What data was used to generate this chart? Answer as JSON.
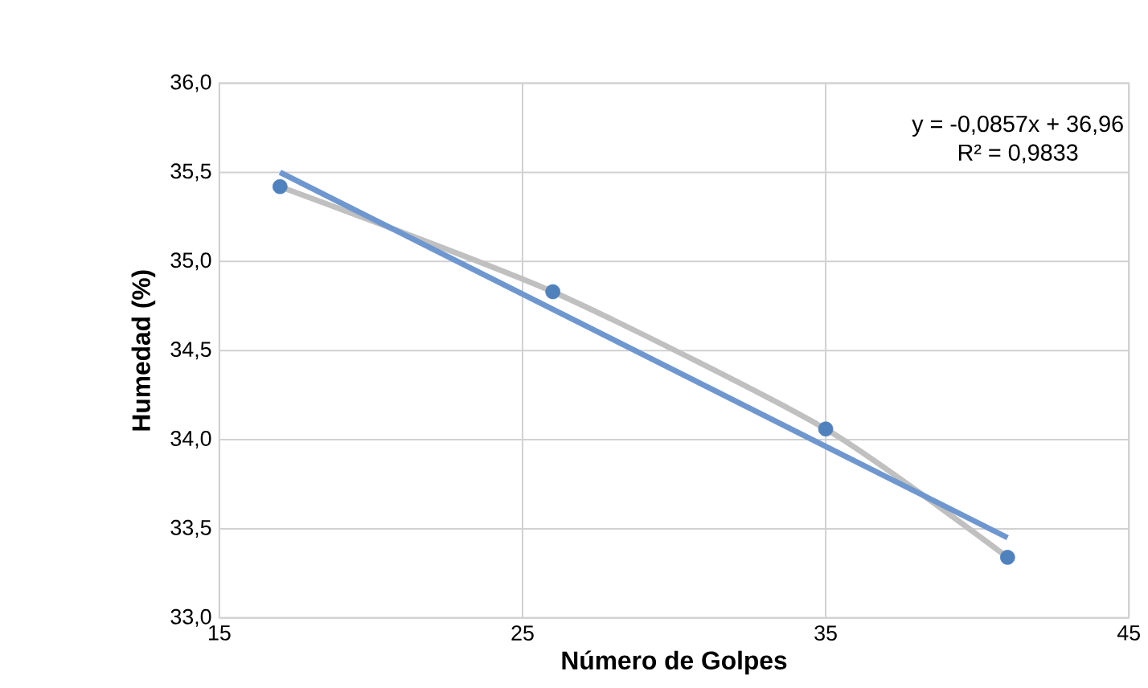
{
  "chart_data": {
    "type": "scatter",
    "xlabel": "Número de Golpes",
    "ylabel": "Humedad (%)",
    "series": [
      {
        "type": "line",
        "color": "#c0c0c0",
        "x": [
          17,
          26,
          35,
          41
        ],
        "values": [
          35.42,
          34.83,
          34.06,
          33.34
        ],
        "marker": "none"
      },
      {
        "type": "line",
        "color": "#6f97cf",
        "x": [
          17,
          41
        ],
        "values": [
          35.5,
          33.45
        ],
        "marker": "none"
      },
      {
        "color": "#4f81bd",
        "x": [
          17,
          26,
          35,
          41
        ],
        "values": [
          35.42,
          34.83,
          34.06,
          33.34
        ],
        "marker": "circle"
      }
    ],
    "xlim": [
      15,
      45
    ],
    "xticks": [
      15,
      25,
      35,
      45
    ],
    "ylim": [
      33,
      36
    ],
    "yticks": [
      {
        "value": 33,
        "label": "33,0"
      },
      {
        "value": 33.5,
        "label": "33,5"
      },
      {
        "value": 34,
        "label": "34,0"
      },
      {
        "value": 34.5,
        "label": "34,5"
      },
      {
        "value": 35,
        "label": "35,0"
      },
      {
        "value": 35.5,
        "label": "35,5"
      },
      {
        "value": 36,
        "label": "36,0"
      }
    ],
    "grid": true,
    "annotations": [
      "y = -0,0857x + 36,96",
      "R² = 0,9833"
    ]
  }
}
